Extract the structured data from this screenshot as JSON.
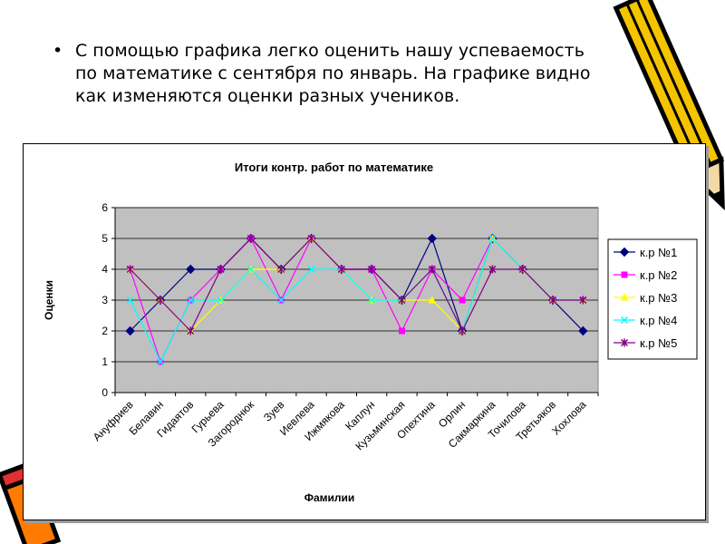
{
  "slide": {
    "bullet": "•",
    "lines": [
      "С помощью графика легко оценить  нашу успеваемость",
      "по  математике с сентября по январь. На графике видно",
      "как изменяются оценки разных учеников."
    ]
  },
  "chart_data": {
    "type": "line",
    "title": "Итоги контр. работ по математике",
    "xlabel": "Фамилии",
    "ylabel": "Оценки",
    "ylim": [
      0,
      6
    ],
    "yticks": [
      "0",
      "1",
      "2",
      "3",
      "4",
      "5",
      "6"
    ],
    "grid": true,
    "legend_position": "right",
    "categories": [
      "Ануфриев",
      "Белавин",
      "Гидаятов",
      "Гурьева",
      "Загороднюк",
      "Зуев",
      "Иевлева",
      "Ижмякова",
      "Каплун",
      "Кузьминская",
      "Опехтина",
      "Орлин",
      "Сакмаркина",
      "Точилова",
      "Третьяков",
      "Хохлова"
    ],
    "series": [
      {
        "name": "к.р №1",
        "color": "#000080",
        "marker": "diamond",
        "values": [
          2,
          3,
          4,
          4,
          5,
          4,
          5,
          4,
          4,
          3,
          5,
          2,
          5,
          4,
          3,
          2
        ]
      },
      {
        "name": "к.р №2",
        "color": "#ff00ff",
        "marker": "square",
        "values": [
          4,
          1,
          3,
          4,
          5,
          3,
          5,
          4,
          4,
          2,
          4,
          3,
          5,
          4,
          3,
          3
        ]
      },
      {
        "name": "к.р №3",
        "color": "#ffff00",
        "marker": "triangle",
        "values": [
          4,
          3,
          2,
          3,
          4,
          4,
          5,
          4,
          3,
          3,
          3,
          2,
          5,
          4,
          3,
          3
        ]
      },
      {
        "name": "к.р №4",
        "color": "#00ffff",
        "marker": "x",
        "values": [
          3,
          1,
          3,
          3,
          4,
          3,
          4,
          4,
          3,
          3,
          4,
          2,
          5,
          4,
          3,
          3
        ]
      },
      {
        "name": "к.р №5",
        "color": "#800080",
        "marker": "star",
        "values": [
          4,
          3,
          2,
          4,
          5,
          4,
          5,
          4,
          4,
          3,
          4,
          2,
          4,
          4,
          3,
          3
        ]
      }
    ],
    "plot_bg": "#c0c0c0"
  }
}
